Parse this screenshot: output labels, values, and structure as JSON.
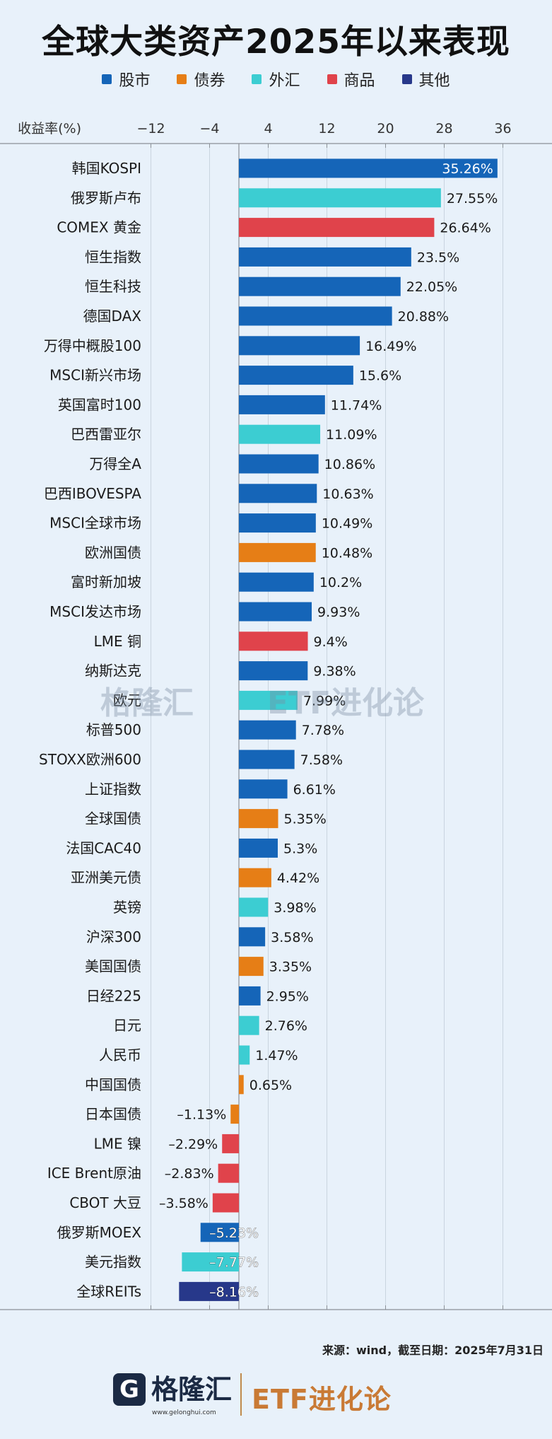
{
  "title": "全球大类资产2025年以来表现",
  "legend": [
    {
      "name": "股市",
      "color": "#1565b8"
    },
    {
      "name": "债券",
      "color": "#e67e16"
    },
    {
      "name": "外汇",
      "color": "#3ccdd2"
    },
    {
      "name": "商品",
      "color": "#e0434b"
    },
    {
      "name": "其他",
      "color": "#27388a"
    }
  ],
  "chart_data": {
    "type": "bar",
    "orientation": "horizontal",
    "ylabel": "收益率(%)",
    "xlim": [
      -16,
      40
    ],
    "xticks": [
      -12,
      -4,
      4,
      12,
      20,
      28,
      36
    ],
    "grid": true,
    "legend_position": "top",
    "categories": [
      "韩国KOSPI",
      "俄罗斯卢布",
      "COMEX 黄金",
      "恒生指数",
      "恒生科技",
      "德国DAX",
      "万得中概股100",
      "MSCI新兴市场",
      "英国富时100",
      "巴西雷亚尔",
      "万得全A",
      "巴西IBOVESPA",
      "MSCI全球市场",
      "欧洲国债",
      "富时新加坡",
      "MSCI发达市场",
      "LME 铜",
      "纳斯达克",
      "欧元",
      "标普500",
      "STOXX欧洲600",
      "上证指数",
      "全球国债",
      "法国CAC40",
      "亚洲美元债",
      "英镑",
      "沪深300",
      "美国国债",
      "日经225",
      "日元",
      "人民币",
      "中国国债",
      "日本国债",
      "LME 镍",
      "ICE Brent原油",
      "CBOT 大豆",
      "俄罗斯MOEX",
      "美元指数",
      "全球REITs"
    ],
    "values": [
      35.26,
      27.55,
      26.64,
      23.5,
      22.05,
      20.88,
      16.49,
      15.6,
      11.74,
      11.09,
      10.86,
      10.63,
      10.49,
      10.48,
      10.2,
      9.93,
      9.4,
      9.38,
      7.99,
      7.78,
      7.58,
      6.61,
      5.35,
      5.3,
      4.42,
      3.98,
      3.58,
      3.35,
      2.95,
      2.76,
      1.47,
      0.65,
      -1.13,
      -2.29,
      -2.83,
      -3.58,
      -5.23,
      -7.77,
      -8.16
    ],
    "value_labels": [
      "35.26%",
      "27.55%",
      "26.64%",
      "23.5%",
      "22.05%",
      "20.88%",
      "16.49%",
      "15.6%",
      "11.74%",
      "11.09%",
      "10.86%",
      "10.63%",
      "10.49%",
      "10.48%",
      "10.2%",
      "9.93%",
      "9.4%",
      "9.38%",
      "7.99%",
      "7.78%",
      "7.58%",
      "6.61%",
      "5.35%",
      "5.3%",
      "4.42%",
      "3.98%",
      "3.58%",
      "3.35%",
      "2.95%",
      "2.76%",
      "1.47%",
      "0.65%",
      "–1.13%",
      "–2.29%",
      "–2.83%",
      "–3.58%",
      "–5.23%",
      "–7.77%",
      "–8.16%"
    ],
    "groups": [
      "股市",
      "外汇",
      "商品",
      "股市",
      "股市",
      "股市",
      "股市",
      "股市",
      "股市",
      "外汇",
      "股市",
      "股市",
      "股市",
      "债券",
      "股市",
      "股市",
      "商品",
      "股市",
      "外汇",
      "股市",
      "股市",
      "股市",
      "债券",
      "股市",
      "债券",
      "外汇",
      "股市",
      "债券",
      "股市",
      "外汇",
      "外汇",
      "债券",
      "债券",
      "商品",
      "商品",
      "商品",
      "股市",
      "外汇",
      "其他"
    ]
  },
  "source": "来源：wind，截至日期：2025年7月31日",
  "footer": {
    "brand_mark": "G",
    "brand": "格隆汇",
    "brand_url": "www.gelonghui.com",
    "etf": "ETF进化论"
  }
}
